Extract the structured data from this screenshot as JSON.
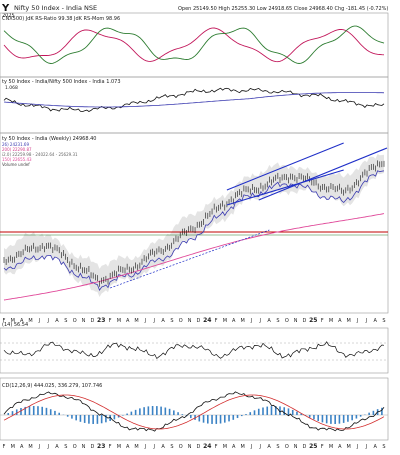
{
  "header": {
    "symbol": "Y",
    "name": "Nifty 50 Index - India NSE",
    "date": "2025",
    "ohlc": "Open 25149.50   High 25255.30   Low 24918.65   Close 24968.40   Chg -181.45 (-0.72%)"
  },
  "panels": {
    "rrg": {
      "label": "CNX500) JdK RS-Ratio 99.38  JdK RS-Mom 98.96"
    },
    "relative": {
      "label": "ty 50 Index - India/Nifty 500 Index - India 1.073",
      "value": "1.068"
    },
    "price": {
      "label": "ty 50 Index - India (Weekly) 24968.40",
      "legend": [
        "26) 24231.69",
        "200) 22290.87",
        "i2.0) 22259.98 - 24022.64 - 25629.31",
        "150) 22655.43",
        "Volume undef"
      ]
    },
    "rsi": {
      "label": "(14) 56.54"
    },
    "macd": {
      "label": "CD(12,26,9) 444.025, 336.279, 107.746"
    }
  },
  "axis": {
    "months": [
      "F",
      "M",
      "A",
      "M",
      "J",
      "J",
      "A",
      "S",
      "O",
      "N",
      "D",
      "23",
      "F",
      "M",
      "A",
      "M",
      "J",
      "J",
      "A",
      "S",
      "O",
      "N",
      "D",
      "24",
      "F",
      "M",
      "A",
      "M",
      "J",
      "J",
      "A",
      "S",
      "O",
      "N",
      "D",
      "25",
      "F",
      "M",
      "A",
      "M",
      "J",
      "J",
      "A",
      "S"
    ],
    "years": [
      "23",
      "24",
      "25"
    ]
  },
  "colors": {
    "price": "#111111",
    "ma_short": "#3a3ab0",
    "ma_long": "#d23c8a",
    "ma_mid": "#e04a9a",
    "trend": "#1f2fc8",
    "support": "#c00000",
    "hline": "#2f7d2f",
    "ratio": "#c2185b",
    "momentum": "#2e7d32",
    "macd_hist": "#3b82c4",
    "macd_signal": "#d32f2f"
  }
}
